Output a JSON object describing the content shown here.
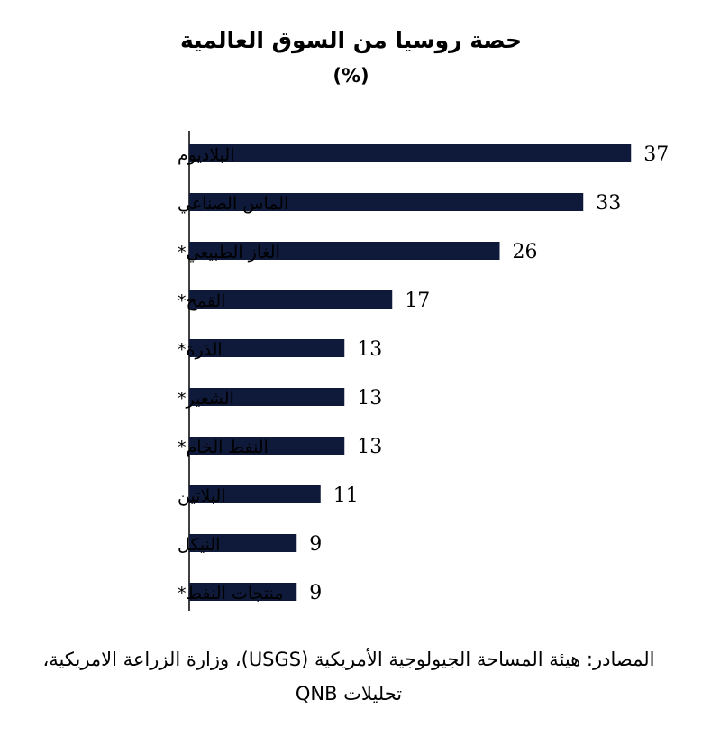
{
  "chart_data": {
    "type": "bar",
    "orientation": "horizontal",
    "title": "حصة روسيا من السوق العالمية",
    "subtitle": "(%)",
    "categories": [
      "البلاديوم",
      "الماس الصناعي",
      "الغاز الطبيعي*",
      "القمح*",
      "الذرة*",
      "الشعير*",
      "النفط الخام*",
      "البلاتين",
      "النيكل",
      "منتجات النفط*"
    ],
    "values": [
      37,
      33,
      26,
      17,
      13,
      13,
      13,
      11,
      9,
      9
    ],
    "value_labels": [
      "37",
      "33",
      "26",
      "17",
      "13",
      "13",
      "13",
      "11",
      "9",
      "9"
    ],
    "xlim": [
      0,
      40
    ],
    "grid": false,
    "legend": "none",
    "bar_color": "#0f1a3a"
  },
  "source": "المصادر: هيئة المساحة الجيولوجية الأمريكية (USGS)، وزارة الزراعة الامريكية، تحليلات QNB"
}
